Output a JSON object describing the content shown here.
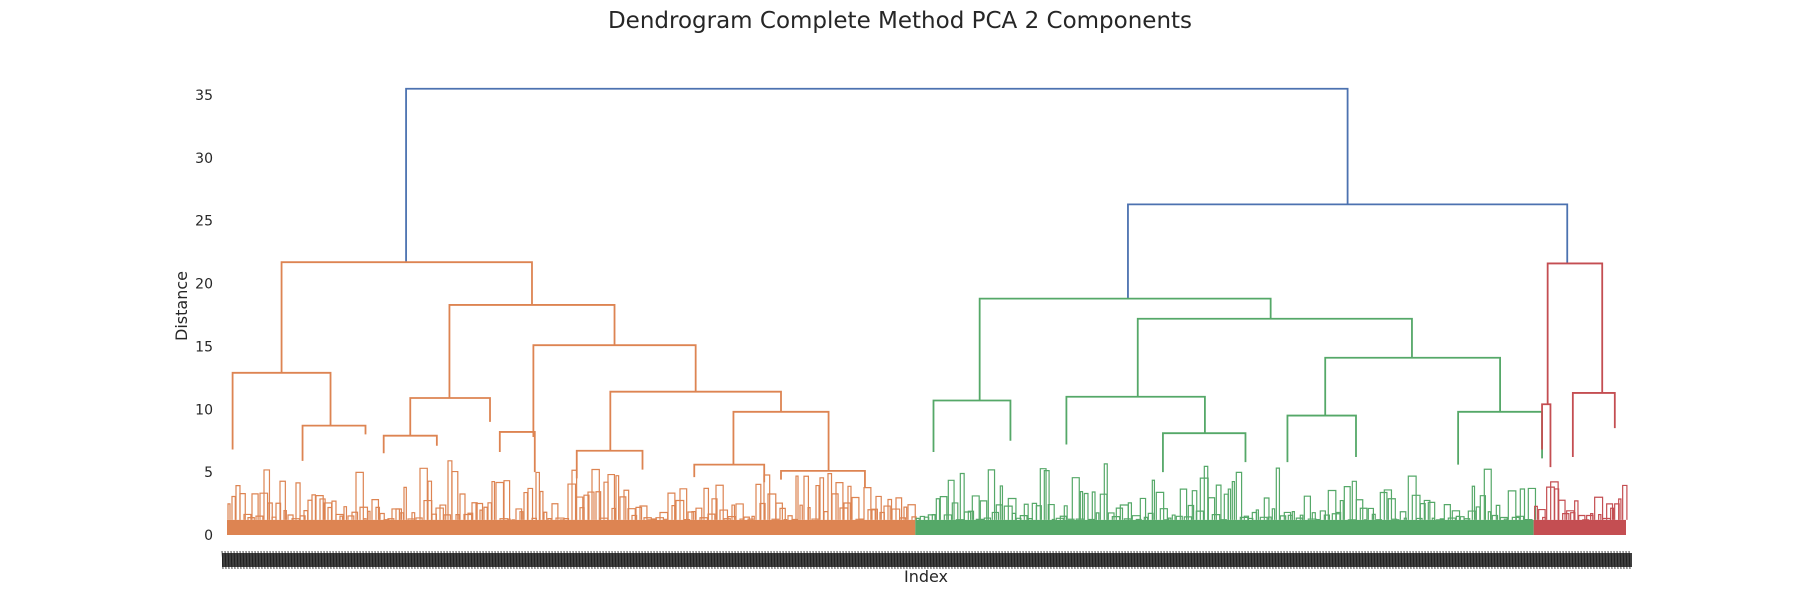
{
  "chart_data": {
    "type": "dendrogram",
    "title": "Dendrogram Complete Method PCA 2 Components",
    "xlabel": "Index",
    "ylabel": "Distance",
    "ylim": [
      0,
      35
    ],
    "yticks": [
      0,
      5,
      10,
      15,
      20,
      25,
      30,
      35
    ],
    "grid": false,
    "leaf_labels_note": "dense illegible index labels",
    "colors": {
      "root": "#4c72b0",
      "cluster_1": "#dd8452",
      "cluster_2": "#55a868",
      "cluster_3": "#c44e52",
      "text": "#262626"
    },
    "clusters": [
      {
        "name": "cluster_1",
        "color_key": "cluster_1",
        "leaf_range": [
          0.0,
          0.492
        ],
        "height": 21.7
      },
      {
        "name": "cluster_2",
        "color_key": "cluster_2",
        "leaf_range": [
          0.492,
          0.934
        ],
        "height": 18.8
      },
      {
        "name": "cluster_3",
        "color_key": "cluster_3",
        "leaf_range": [
          0.934,
          1.0
        ],
        "height": 21.6
      }
    ],
    "merges": [
      {
        "id": "root",
        "height": 35.5,
        "color_key": "root",
        "children": [
          "cluster_1",
          "upper_right"
        ]
      },
      {
        "id": "upper_right",
        "height": 26.3,
        "color_key": "root",
        "children": [
          "cluster_2",
          "cluster_3"
        ]
      }
    ],
    "links": [
      {
        "c": "root",
        "x1": 0.128,
        "x2": 0.801,
        "h": 35.5,
        "h1": 21.7,
        "h2": 26.3
      },
      {
        "c": "root",
        "x1": 0.644,
        "x2": 0.958,
        "h": 26.3,
        "h1": 18.8,
        "h2": 21.6
      },
      {
        "c": "cluster_1",
        "x1": 0.039,
        "x2": 0.218,
        "h": 21.7,
        "h1": 12.9,
        "h2": 18.3
      },
      {
        "c": "cluster_1",
        "x1": 0.159,
        "x2": 0.277,
        "h": 18.3,
        "h1": 10.9,
        "h2": 15.1
      },
      {
        "c": "cluster_1",
        "x1": 0.219,
        "x2": 0.335,
        "h": 15.1,
        "h1": 7.8,
        "h2": 11.4
      },
      {
        "c": "cluster_1",
        "x1": 0.274,
        "x2": 0.396,
        "h": 11.4,
        "h1": 6.7,
        "h2": 9.8
      },
      {
        "c": "cluster_1",
        "x1": 0.362,
        "x2": 0.43,
        "h": 9.8,
        "h1": 5.6,
        "h2": 5.1
      },
      {
        "c": "cluster_1",
        "x1": 0.004,
        "x2": 0.074,
        "h": 12.9,
        "h1": 6.8,
        "h2": 8.7
      },
      {
        "c": "cluster_1",
        "x1": 0.054,
        "x2": 0.099,
        "h": 8.7,
        "h1": 5.9,
        "h2": 8.0
      },
      {
        "c": "cluster_1",
        "x1": 0.131,
        "x2": 0.188,
        "h": 10.9,
        "h1": 7.9,
        "h2": 9.0
      },
      {
        "c": "cluster_1",
        "x1": 0.112,
        "x2": 0.15,
        "h": 7.9,
        "h1": 6.5,
        "h2": 7.1
      },
      {
        "c": "cluster_1",
        "x1": 0.25,
        "x2": 0.297,
        "h": 6.7,
        "h1": 4.5,
        "h2": 5.2
      },
      {
        "c": "cluster_1",
        "x1": 0.334,
        "x2": 0.384,
        "h": 5.6,
        "h1": 4.6,
        "h2": 4.2
      },
      {
        "c": "cluster_1",
        "x1": 0.396,
        "x2": 0.456,
        "h": 5.1,
        "h1": 4.4,
        "h2": 3.8
      },
      {
        "c": "cluster_1",
        "x1": 0.195,
        "x2": 0.22,
        "h": 8.2,
        "h1": 6.6,
        "h2": 5.0
      },
      {
        "c": "cluster_2",
        "x1": 0.538,
        "x2": 0.746,
        "h": 18.8,
        "h1": 10.7,
        "h2": 17.2
      },
      {
        "c": "cluster_2",
        "x1": 0.651,
        "x2": 0.847,
        "h": 17.2,
        "h1": 11.0,
        "h2": 14.1
      },
      {
        "c": "cluster_2",
        "x1": 0.6,
        "x2": 0.699,
        "h": 11.0,
        "h1": 7.2,
        "h2": 8.1
      },
      {
        "c": "cluster_2",
        "x1": 0.785,
        "x2": 0.91,
        "h": 14.1,
        "h1": 9.5,
        "h2": 9.8
      },
      {
        "c": "cluster_2",
        "x1": 0.758,
        "x2": 0.807,
        "h": 9.5,
        "h1": 5.8,
        "h2": 6.2
      },
      {
        "c": "cluster_2",
        "x1": 0.88,
        "x2": 0.94,
        "h": 9.8,
        "h1": 5.6,
        "h2": 6.1
      },
      {
        "c": "cluster_2",
        "x1": 0.505,
        "x2": 0.56,
        "h": 10.7,
        "h1": 6.6,
        "h2": 7.5
      },
      {
        "c": "cluster_2",
        "x1": 0.669,
        "x2": 0.728,
        "h": 8.1,
        "h1": 5.0,
        "h2": 5.8
      },
      {
        "c": "cluster_3",
        "x1": 0.944,
        "x2": 0.983,
        "h": 21.6,
        "h1": 10.4,
        "h2": 11.3
      },
      {
        "c": "cluster_3",
        "x1": 0.962,
        "x2": 0.992,
        "h": 11.3,
        "h1": 6.2,
        "h2": 8.5
      },
      {
        "c": "cluster_3",
        "x1": 0.94,
        "x2": 0.946,
        "h": 10.4,
        "h1": 6.8,
        "h2": 5.4
      }
    ],
    "leaf_fill_height": 1.2
  }
}
